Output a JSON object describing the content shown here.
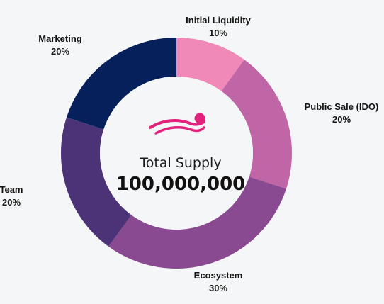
{
  "chart_data": {
    "type": "pie",
    "variant": "donut",
    "center": {
      "title": "Total Supply",
      "value": "100,000,000"
    },
    "slices": [
      {
        "label": "Initial Liquidity",
        "value": 10,
        "display": "10%",
        "color": "#f088b8"
      },
      {
        "label": "Public Sale (IDO)",
        "value": 20,
        "display": "20%",
        "color": "#c066a6"
      },
      {
        "label": "Ecosystem",
        "value": 30,
        "display": "30%",
        "color": "#894a92"
      },
      {
        "label": "Team",
        "value": 20,
        "display": "20%",
        "color": "#4c3276"
      },
      {
        "label": "Marketing",
        "value": 20,
        "display": "20%",
        "color": "#05205a"
      }
    ]
  },
  "logo": {
    "icon": "brand-wave-logo-icon",
    "wave_color": "#e2237e",
    "dot_color": "#e2237e"
  },
  "background_color": "#f5f6f7"
}
